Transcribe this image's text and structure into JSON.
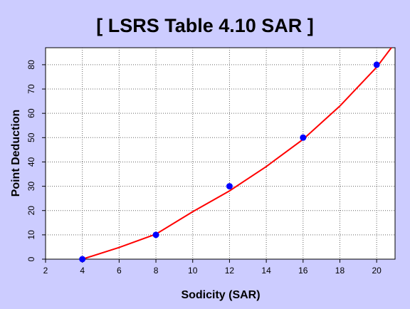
{
  "chart_data": {
    "type": "scatter",
    "title": "[ LSRS Table 4.10 SAR ]",
    "xlabel": "Sodicity (SAR)",
    "ylabel": "Point Deduction",
    "xlim": [
      2,
      21
    ],
    "ylim": [
      0,
      87
    ],
    "xticks": [
      "2",
      "4",
      "6",
      "8",
      "10",
      "12",
      "14",
      "16",
      "18",
      "20"
    ],
    "yticks": [
      "0",
      "10",
      "20",
      "30",
      "40",
      "50",
      "60",
      "70",
      "80"
    ],
    "grid": true,
    "series": [
      {
        "kind": "points",
        "color": "#0000ff",
        "x": [
          4,
          8,
          12,
          16,
          20
        ],
        "y": [
          0,
          10,
          30,
          50,
          80
        ]
      },
      {
        "kind": "fit-curve",
        "color": "#ff0000",
        "x": [
          4,
          6,
          8,
          10,
          12,
          14,
          16,
          18,
          20,
          20.8
        ],
        "y": [
          0,
          4.8,
          10.3,
          19.5,
          28.1,
          38.1,
          49.3,
          63.0,
          79.0,
          87
        ]
      }
    ]
  },
  "colors": {
    "background": "#ccccff",
    "plot_area": "#ffffff",
    "points": "#0000ff",
    "curve": "#ff0000"
  }
}
